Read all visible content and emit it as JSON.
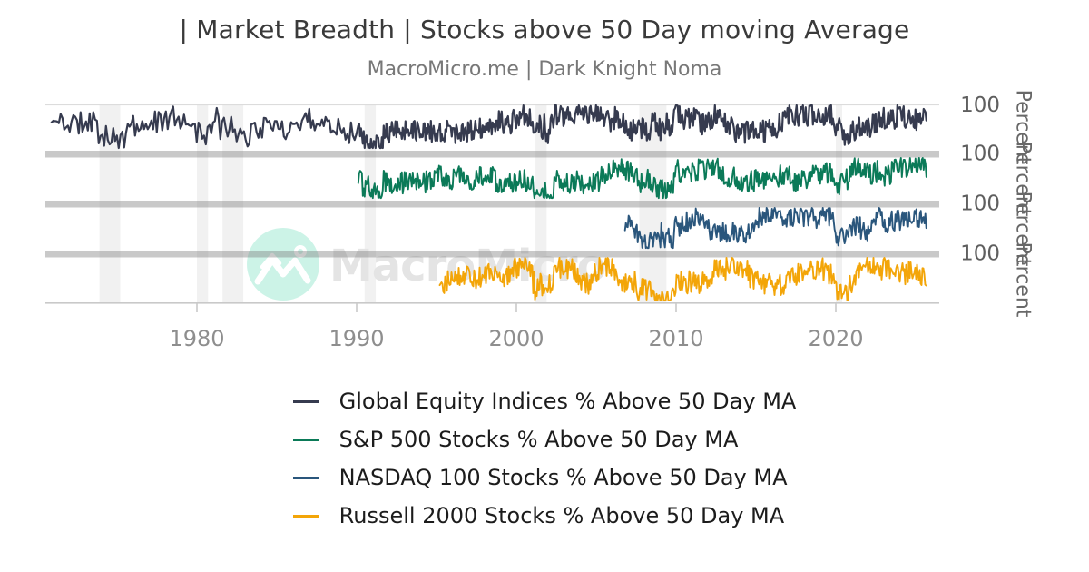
{
  "header": {
    "title": "| Market Breadth | Stocks above 50 Day moving Average",
    "subtitle": "MacroMicro.me | Dark Knight Noma"
  },
  "watermark": {
    "text": "MacroMicro",
    "logo_circle_color": "#c7f2e4",
    "logo_mark_color": "#ffffff",
    "text_color": "#e4e4e4"
  },
  "chart_data": {
    "type": "line",
    "title": "| Market Breadth | Stocks above 50 Day moving Average",
    "layout": "4 vertically stacked panels sharing one x axis, thick grey bars separating panels",
    "x_range": [
      1970.5,
      2026.5
    ],
    "x_ticks": [
      "1980",
      "1990",
      "2000",
      "2010",
      "2020"
    ],
    "x_tick_years": [
      1980,
      1990,
      2000,
      2010,
      2020
    ],
    "ylabel": "Percent",
    "ylabel_repeated_per_panel": true,
    "y_top_tick_label": "100",
    "y_range_per_panel": [
      0,
      100
    ],
    "legend_position": "bottom center",
    "grid": "light grey vertical recession bands across all panels",
    "series": [
      {
        "label": "Global Equity Indices % Above 50 Day MA",
        "color": "#363b4f",
        "start_year": 1970.9,
        "end_year": 2025.7,
        "approx_mean": 60,
        "approx_min": 5,
        "approx_max": 100
      },
      {
        "label": "S&P 500 Stocks % Above 50 Day MA",
        "color": "#0b7a58",
        "start_year": 1990.1,
        "end_year": 2025.7,
        "approx_mean": 60,
        "approx_min": 5,
        "approx_max": 100
      },
      {
        "label": "NASDAQ 100 Stocks % Above 50 Day MA",
        "color": "#2a567c",
        "start_year": 2006.8,
        "end_year": 2025.7,
        "approx_mean": 58,
        "approx_min": 5,
        "approx_max": 100
      },
      {
        "label": "Russell 2000 Stocks % Above 50 Day MA",
        "color": "#f3a508",
        "start_year": 1995.2,
        "end_year": 2025.7,
        "approx_mean": 58,
        "approx_min": 5,
        "approx_max": 100
      }
    ],
    "recession_bands": [
      [
        1973.9,
        1975.2
      ],
      [
        1980.0,
        1980.7
      ],
      [
        1981.6,
        1982.9
      ],
      [
        1990.5,
        1991.2
      ],
      [
        2001.2,
        2001.9
      ],
      [
        2007.7,
        2009.4
      ],
      [
        2020.0,
        2020.4
      ]
    ],
    "style_colors": {
      "separator_bar": "#c9c9c9",
      "recession_band": "#ededed",
      "axis_line": "#c9c9c9",
      "x_tick_label": "#8e8e8e",
      "y_tick_label": "#5f5f5f",
      "ylabel_text": "#686868"
    }
  }
}
